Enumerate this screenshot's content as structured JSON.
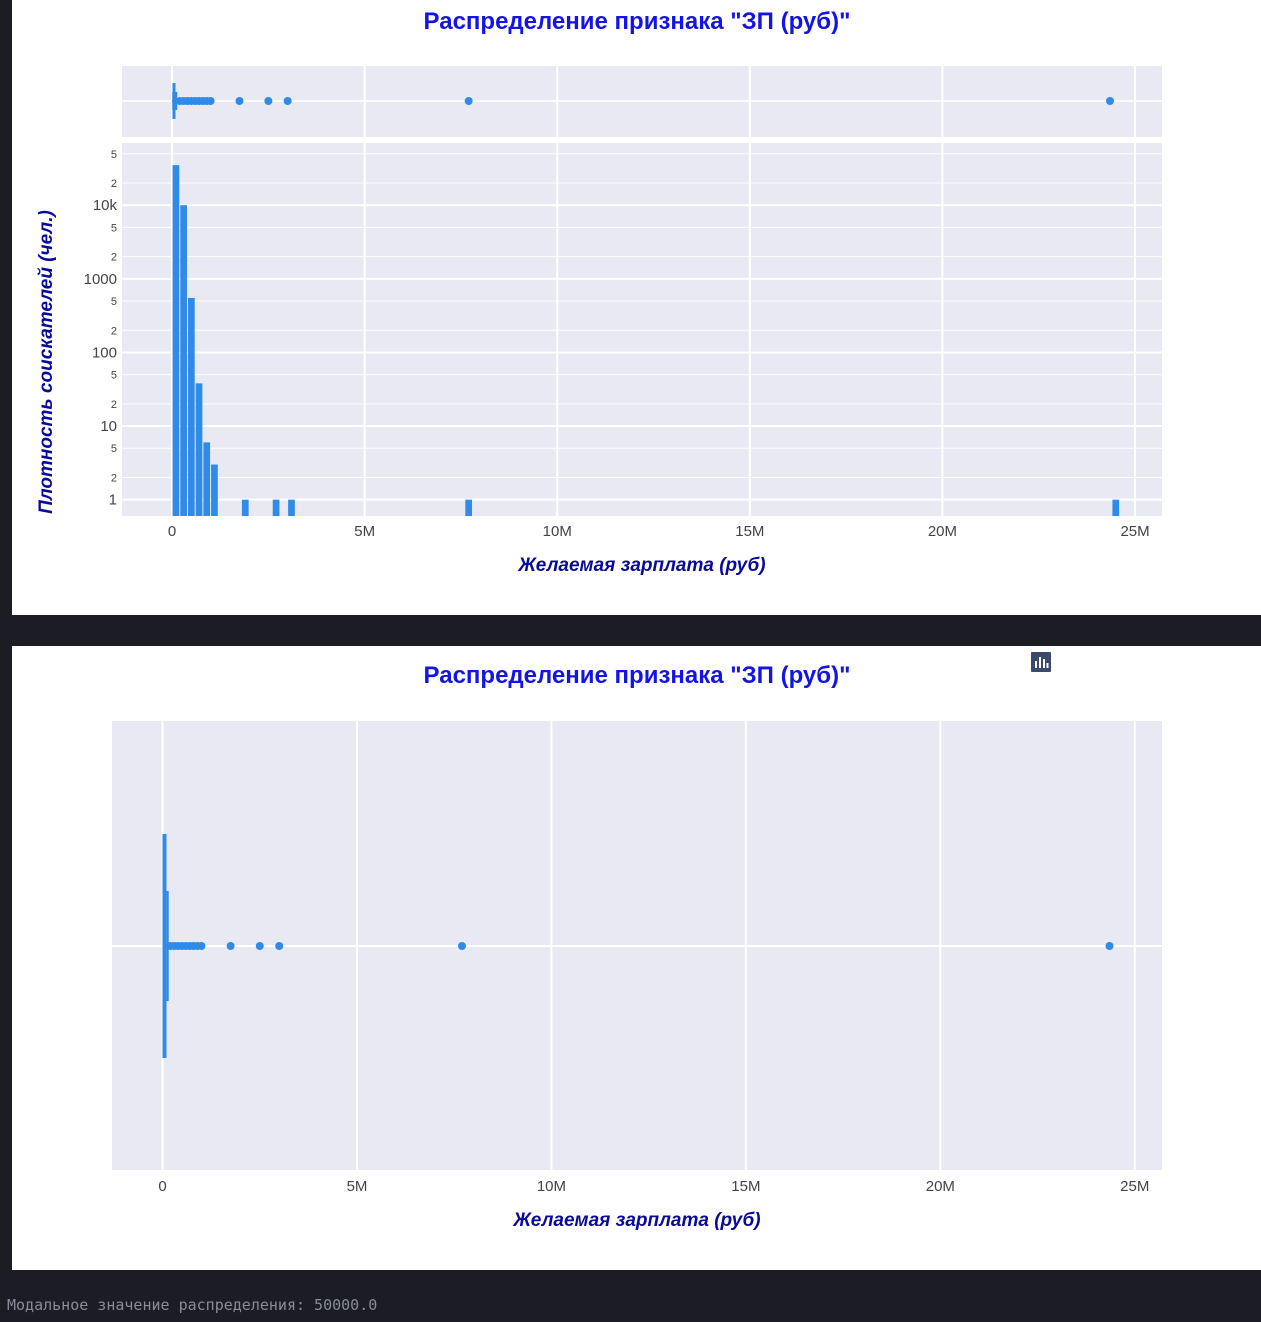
{
  "charts": {
    "chart1": {
      "title": "Распределение признака \"ЗП (руб)\"",
      "xlabel": "Желаемая зарплата (руб)",
      "ylabel": "Плотность соискателей (чел.)",
      "x_ticks": [
        "0",
        "5M",
        "10M",
        "15M",
        "20M",
        "25M"
      ],
      "y_major_ticks": [
        "1",
        "10",
        "100",
        "1000",
        "10k"
      ],
      "y_minor_labels": [
        "2",
        "5"
      ]
    },
    "chart2": {
      "title": "Распределение признака \"ЗП (руб)\"",
      "xlabel": "Желаемая зарплата (руб)",
      "x_ticks": [
        "0",
        "5M",
        "10M",
        "15M",
        "20M",
        "25M"
      ]
    }
  },
  "modebar": {
    "icons": [
      "camera-icon",
      "zoom-icon",
      "pan-icon",
      "zoom-in-icon",
      "zoom-out-icon",
      "autoscale-icon",
      "home-icon",
      "plotly-logo-icon"
    ]
  },
  "console_text": "Модальное значение распределения: 50000.0",
  "colors": {
    "plot_bg": "#e8e9f2",
    "bar": "#2f8be6",
    "title": "#1414e6",
    "axis_label": "#0a0a9a",
    "background": "#1b1c24"
  },
  "chart_data": [
    {
      "type": "histogram",
      "title": "Распределение признака \"ЗП (руб)\"",
      "xlabel": "Желаемая зарплата (руб)",
      "ylabel": "Плотность соискателей (чел.)",
      "y_scale": "log",
      "xlim": [
        -1300000,
        25700000
      ],
      "ylim": [
        0.6,
        70000
      ],
      "bin_width": 200000,
      "bins": [
        {
          "x": 0,
          "y": 35000
        },
        {
          "x": 200000,
          "y": 10000
        },
        {
          "x": 400000,
          "y": 550
        },
        {
          "x": 600000,
          "y": 38
        },
        {
          "x": 800000,
          "y": 6
        },
        {
          "x": 1000000,
          "y": 3
        },
        {
          "x": 1800000,
          "y": 1
        },
        {
          "x": 2600000,
          "y": 1
        },
        {
          "x": 3000000,
          "y": 1
        },
        {
          "x": 7600000,
          "y": 1
        },
        {
          "x": 24400000,
          "y": 1
        }
      ],
      "marginal": {
        "type": "box",
        "median": 50000,
        "q1": 30000,
        "q3": 80000,
        "lower_fence": 0,
        "upper_fence": 150000,
        "outliers": [
          200000,
          300000,
          400000,
          500000,
          600000,
          700000,
          800000,
          900000,
          1000000,
          1750000,
          2500000,
          3000000,
          7700000,
          24350000
        ]
      }
    },
    {
      "type": "box",
      "title": "Распределение признака \"ЗП (руб)\"",
      "xlabel": "Желаемая зарплата (руб)",
      "xlim": [
        -1300000,
        25700000
      ],
      "median": 50000,
      "q1": 30000,
      "q3": 80000,
      "lower_fence": 0,
      "upper_fence": 150000,
      "outliers": [
        200000,
        300000,
        400000,
        500000,
        600000,
        700000,
        800000,
        900000,
        1000000,
        1750000,
        2500000,
        3000000,
        7700000,
        24350000
      ]
    }
  ]
}
